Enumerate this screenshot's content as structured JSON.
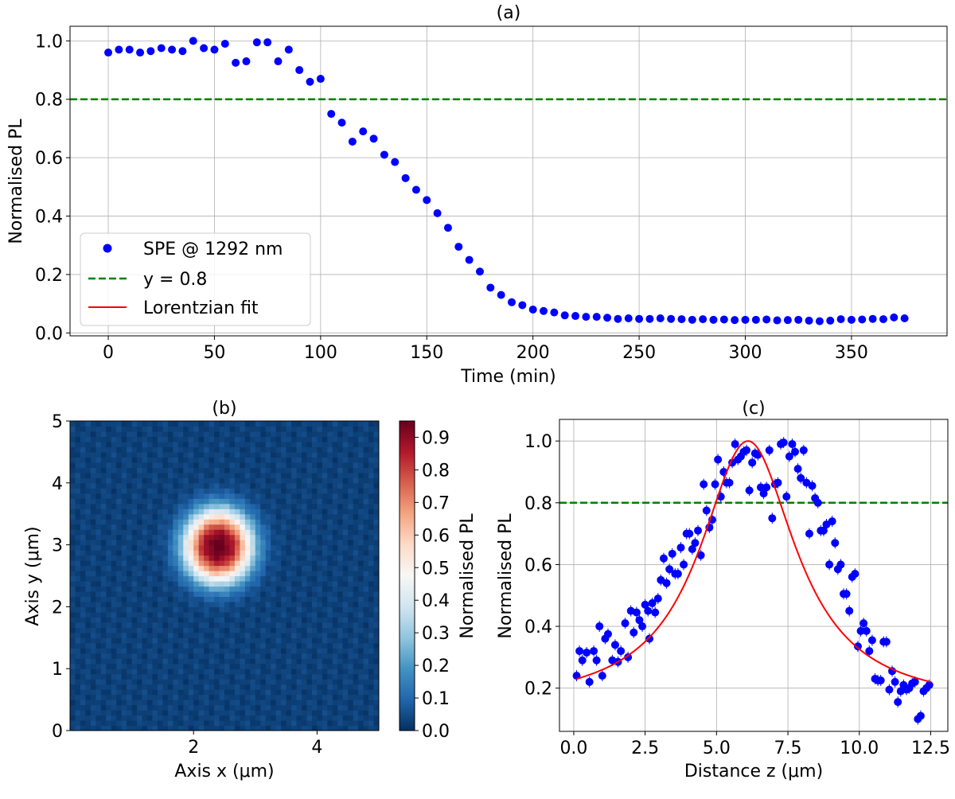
{
  "chart_data": [
    {
      "id": "a",
      "type": "scatter",
      "title": "(a)",
      "xlabel": "Time (min)",
      "ylabel": "Normalised PL",
      "xlim": [
        -18,
        395
      ],
      "ylim": [
        -0.01,
        1.05
      ],
      "xticks": [
        0,
        50,
        100,
        150,
        200,
        250,
        300,
        350
      ],
      "yticks": [
        0.0,
        0.2,
        0.4,
        0.6,
        0.8,
        1.0
      ],
      "xtick_labels": [
        "0",
        "50",
        "100",
        "150",
        "200",
        "250",
        "300",
        "350"
      ],
      "ytick_labels": [
        "0.0",
        "0.2",
        "0.4",
        "0.6",
        "0.8",
        "1.0"
      ],
      "grid": true,
      "hline": {
        "y": 0.8,
        "color": "#008000",
        "style": "dashed"
      },
      "series": [
        {
          "name": "SPE @ 1292 nm",
          "color": "#0000ff",
          "x": [
            0,
            5,
            10,
            15,
            20,
            25,
            30,
            35,
            40,
            45,
            50,
            55,
            60,
            65,
            70,
            75,
            80,
            85,
            90,
            95,
            100,
            105,
            110,
            115,
            120,
            125,
            130,
            135,
            140,
            145,
            150,
            155,
            160,
            165,
            170,
            175,
            180,
            185,
            190,
            195,
            200,
            205,
            210,
            215,
            220,
            225,
            230,
            235,
            240,
            245,
            250,
            255,
            260,
            265,
            270,
            275,
            280,
            285,
            290,
            295,
            300,
            305,
            310,
            315,
            320,
            325,
            330,
            335,
            340,
            345,
            350,
            355,
            360,
            365,
            370,
            375
          ],
          "y": [
            0.96,
            0.97,
            0.97,
            0.96,
            0.965,
            0.975,
            0.97,
            0.965,
            1.0,
            0.975,
            0.97,
            0.99,
            0.925,
            0.93,
            0.995,
            0.995,
            0.93,
            0.97,
            0.9,
            0.86,
            0.87,
            0.75,
            0.72,
            0.655,
            0.69,
            0.665,
            0.61,
            0.585,
            0.53,
            0.49,
            0.455,
            0.41,
            0.36,
            0.295,
            0.25,
            0.21,
            0.155,
            0.13,
            0.105,
            0.095,
            0.08,
            0.075,
            0.07,
            0.06,
            0.058,
            0.055,
            0.055,
            0.052,
            0.048,
            0.05,
            0.048,
            0.048,
            0.05,
            0.048,
            0.047,
            0.045,
            0.047,
            0.045,
            0.046,
            0.044,
            0.045,
            0.045,
            0.046,
            0.043,
            0.044,
            0.045,
            0.042,
            0.04,
            0.042,
            0.047,
            0.045,
            0.046,
            0.048,
            0.047,
            0.053,
            0.05
          ]
        }
      ],
      "legend": {
        "position": "lower-left",
        "entries": [
          {
            "label": "SPE @ 1292 nm",
            "kind": "marker",
            "color": "#0000ff"
          },
          {
            "label": "y = 0.8",
            "kind": "dashed",
            "color": "#008000"
          },
          {
            "label": "Lorentzian fit",
            "kind": "line",
            "color": "#ff0000"
          }
        ]
      }
    },
    {
      "id": "b",
      "type": "heatmap",
      "title": "(b)",
      "xlabel": "Axis x (μm)",
      "ylabel": "Axis y (μm)",
      "xlim": [
        0,
        5
      ],
      "ylim": [
        0,
        5
      ],
      "xticks": [
        2,
        4
      ],
      "yticks": [
        0,
        1,
        2,
        3,
        4,
        5
      ],
      "xtick_labels": [
        "2",
        "4"
      ],
      "ytick_labels": [
        "0",
        "1",
        "2",
        "3",
        "4",
        "5"
      ],
      "colormap": "RdBu_r",
      "spot": {
        "x0": 2.4,
        "y0": 2.98,
        "sx": 0.42,
        "sy": 0.45,
        "peak": 0.95,
        "background": 0.03
      },
      "colorbar": {
        "label": "Normalised PL",
        "range": [
          0.0,
          0.95
        ],
        "ticks": [
          0.0,
          0.1,
          0.2,
          0.3,
          0.4,
          0.5,
          0.6,
          0.7,
          0.8,
          0.9
        ],
        "tick_labels": [
          "0.0",
          "0.1",
          "0.2",
          "0.3",
          "0.4",
          "0.5",
          "0.6",
          "0.7",
          "0.8",
          "0.9"
        ]
      }
    },
    {
      "id": "c",
      "type": "scatter",
      "title": "(c)",
      "xlabel": "Distance z (μm)",
      "ylabel": "Normalised PL",
      "xlim": [
        -0.5,
        13.1
      ],
      "ylim": [
        0.06,
        1.07
      ],
      "xticks": [
        0.0,
        2.5,
        5.0,
        7.5,
        10.0,
        12.5
      ],
      "yticks": [
        0.2,
        0.4,
        0.6,
        0.8,
        1.0
      ],
      "xtick_labels": [
        "0.0",
        "2.5",
        "5.0",
        "7.5",
        "10.0",
        "12.5"
      ],
      "ytick_labels": [
        "0.2",
        "0.4",
        "0.6",
        "0.8",
        "1.0"
      ],
      "grid": true,
      "hline": {
        "y": 0.8,
        "color": "#008000",
        "style": "dashed"
      },
      "fit": {
        "name": "Lorentzian fit",
        "color": "#ff0000",
        "center": 6.1,
        "gamma": 2.05,
        "amplitude": 0.86,
        "offset": 0.14,
        "x_range": [
          0.1,
          12.5
        ]
      },
      "series": [
        {
          "name": "SPE @ 1292 nm",
          "color": "#0000ff",
          "x": [
            0.1,
            0.2,
            0.3,
            0.45,
            0.55,
            0.7,
            0.8,
            0.9,
            1.0,
            1.1,
            1.2,
            1.35,
            1.45,
            1.55,
            1.65,
            1.8,
            1.9,
            2.0,
            2.1,
            2.2,
            2.3,
            2.4,
            2.5,
            2.6,
            2.65,
            2.75,
            2.85,
            2.95,
            3.05,
            3.15,
            3.25,
            3.35,
            3.45,
            3.55,
            3.65,
            3.75,
            3.85,
            3.95,
            4.05,
            4.15,
            4.25,
            4.35,
            4.45,
            4.55,
            4.65,
            4.75,
            4.85,
            4.95,
            5.05,
            5.15,
            5.25,
            5.35,
            5.45,
            5.55,
            5.65,
            5.75,
            5.85,
            5.95,
            6.05,
            6.15,
            6.25,
            6.35,
            6.45,
            6.55,
            6.65,
            6.75,
            6.85,
            6.95,
            7.05,
            7.15,
            7.25,
            7.35,
            7.45,
            7.55,
            7.65,
            7.75,
            7.85,
            7.95,
            8.05,
            8.15,
            8.25,
            8.35,
            8.45,
            8.55,
            8.65,
            8.75,
            8.85,
            8.95,
            9.05,
            9.15,
            9.25,
            9.35,
            9.45,
            9.55,
            9.65,
            9.75,
            9.85,
            9.95,
            10.05,
            10.15,
            10.25,
            10.35,
            10.45,
            10.55,
            10.65,
            10.75,
            10.85,
            10.95,
            11.05,
            11.15,
            11.25,
            11.35,
            11.45,
            11.55,
            11.65,
            11.75,
            11.85,
            11.95,
            12.05,
            12.15,
            12.25,
            12.35,
            12.45
          ],
          "y": [
            0.24,
            0.32,
            0.29,
            0.315,
            0.22,
            0.32,
            0.29,
            0.4,
            0.24,
            0.36,
            0.375,
            0.29,
            0.34,
            0.285,
            0.32,
            0.41,
            0.3,
            0.45,
            0.38,
            0.445,
            0.42,
            0.4,
            0.47,
            0.45,
            0.36,
            0.475,
            0.445,
            0.49,
            0.55,
            0.62,
            0.54,
            0.585,
            0.635,
            0.57,
            0.57,
            0.655,
            0.6,
            0.7,
            0.7,
            0.65,
            0.67,
            0.71,
            0.63,
            0.86,
            0.775,
            0.72,
            0.745,
            0.86,
            0.94,
            0.82,
            0.9,
            0.865,
            0.865,
            0.93,
            0.99,
            0.94,
            0.95,
            0.965,
            0.97,
            0.84,
            0.93,
            0.96,
            0.955,
            0.85,
            0.83,
            0.85,
            0.97,
            0.75,
            0.86,
            0.865,
            0.99,
            0.995,
            0.82,
            0.95,
            0.99,
            0.965,
            0.91,
            0.88,
            0.97,
            0.865,
            0.7,
            0.855,
            0.815,
            0.8,
            0.71,
            0.71,
            0.73,
            0.6,
            0.74,
            0.67,
            0.585,
            0.6,
            0.505,
            0.505,
            0.45,
            0.56,
            0.57,
            0.335,
            0.385,
            0.41,
            0.385,
            0.32,
            0.355,
            0.23,
            0.225,
            0.225,
            0.35,
            0.35,
            0.195,
            0.255,
            0.22,
            0.155,
            0.19,
            0.21,
            0.195,
            0.2,
            0.215,
            0.22,
            0.1,
            0.11,
            0.19,
            0.2,
            0.21
          ]
        }
      ]
    }
  ]
}
